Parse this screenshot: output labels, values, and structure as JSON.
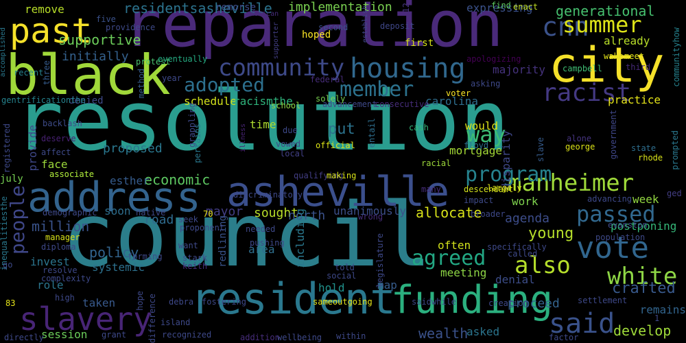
{
  "words": [
    {
      "text": "resolution",
      "color": "#2a9d8f"
    },
    {
      "text": "council",
      "color": "#2b7e8b"
    },
    {
      "text": "reparation",
      "color": "#4a2a7a"
    },
    {
      "text": "black",
      "color": "#a0d83a"
    },
    {
      "text": "city",
      "color": "#f5e12a"
    },
    {
      "text": "past",
      "color": "#f5e12a"
    },
    {
      "text": "asheville",
      "color": "#3b4f8c"
    },
    {
      "text": "address",
      "color": "#33638d"
    },
    {
      "text": "resident",
      "color": "#2a788e"
    },
    {
      "text": "funding",
      "color": "#2bb07f"
    },
    {
      "text": "slavery",
      "color": "#482576"
    },
    {
      "text": "said",
      "color": "#3a528b"
    },
    {
      "text": "vote",
      "color": "#31668e"
    },
    {
      "text": "white",
      "color": "#8ed645"
    },
    {
      "text": "housing",
      "color": "#31688e"
    },
    {
      "text": "community",
      "color": "#3e4a89"
    },
    {
      "text": "cnn",
      "color": "#3b528b"
    },
    {
      "text": "summer",
      "color": "#dde318"
    },
    {
      "text": "racist",
      "color": "#443983"
    },
    {
      "text": "manheimer",
      "color": "#9fda3a"
    },
    {
      "text": "passed",
      "color": "#31688e"
    },
    {
      "text": "program",
      "color": "#26828e"
    },
    {
      "text": "agreed",
      "color": "#23a884"
    },
    {
      "text": "also",
      "color": "#b5de2b"
    },
    {
      "text": "member",
      "color": "#2c728e"
    },
    {
      "text": "way",
      "color": "#3dbc74"
    },
    {
      "text": "adopted",
      "color": "#2d708e"
    },
    {
      "text": "people",
      "color": "#3f4788"
    },
    {
      "text": "economic",
      "color": "#5ec962"
    },
    {
      "text": "wealth",
      "color": "#3b528b"
    },
    {
      "text": "crafted",
      "color": "#38598c"
    },
    {
      "text": "young",
      "color": "#b5de2b"
    },
    {
      "text": "generational",
      "color": "#46c06f"
    },
    {
      "text": "implementation",
      "color": "#7ad151"
    },
    {
      "text": "residentsasheville",
      "color": "#2c738e"
    },
    {
      "text": "supportive",
      "color": "#6ccd5a"
    },
    {
      "text": "initially",
      "color": "#34618d"
    },
    {
      "text": "remove",
      "color": "#b8de29"
    },
    {
      "text": "expressing",
      "color": "#3b528b"
    },
    {
      "text": "remorse",
      "color": "#3e4c8a"
    },
    {
      "text": "already",
      "color": "#b8de29"
    },
    {
      "text": "majority",
      "color": "#46337e"
    },
    {
      "text": "practice",
      "color": "#e5e419"
    },
    {
      "text": "carolina",
      "color": "#2e6e8e"
    },
    {
      "text": "schedule",
      "color": "#d2e21b"
    },
    {
      "text": "racismthe",
      "color": "#2fb47c"
    },
    {
      "text": "denied",
      "color": "#3e4a89"
    },
    {
      "text": "time",
      "color": "#b0dd2f"
    },
    {
      "text": "put",
      "color": "#2c738e"
    },
    {
      "text": "would",
      "color": "#dde318"
    },
    {
      "text": "mortgage",
      "color": "#a5db36"
    },
    {
      "text": "disparity",
      "color": "#3f4889"
    },
    {
      "text": "proposed",
      "color": "#2a778e"
    },
    {
      "text": "provide",
      "color": "#3f4889"
    },
    {
      "text": "face",
      "color": "#9dd93b"
    },
    {
      "text": "esther",
      "color": "#365c8d"
    },
    {
      "text": "july",
      "color": "#77d153"
    },
    {
      "text": "policy",
      "color": "#32648e"
    },
    {
      "text": "million",
      "color": "#3a538b"
    },
    {
      "text": "invest",
      "color": "#2b758e"
    },
    {
      "text": "systemic",
      "color": "#2d718e"
    },
    {
      "text": "role",
      "color": "#2b758e"
    },
    {
      "text": "taken",
      "color": "#38598c"
    },
    {
      "text": "session",
      "color": "#6ccd5a"
    },
    {
      "text": "mayor",
      "color": "#433e85"
    },
    {
      "text": "soon",
      "color": "#2e6e8e"
    },
    {
      "text": "road",
      "color": "#2f6b8e"
    },
    {
      "text": "sought",
      "color": "#b8de29"
    },
    {
      "text": "north",
      "color": "#3b528b"
    },
    {
      "text": "unanimously",
      "color": "#3c4f8a"
    },
    {
      "text": "allocate",
      "color": "#d8e219"
    },
    {
      "text": "agenda",
      "color": "#3d4d8a"
    },
    {
      "text": "work",
      "color": "#7fd34e"
    },
    {
      "text": "week",
      "color": "#93d741"
    },
    {
      "text": "postponing",
      "color": "#35b779"
    },
    {
      "text": "often",
      "color": "#d2e21b"
    },
    {
      "text": "area",
      "color": "#2e6f8e"
    },
    {
      "text": "meeting",
      "color": "#8ed645"
    },
    {
      "text": "denial",
      "color": "#3d4e8a"
    },
    {
      "text": "hold",
      "color": "#20928c"
    },
    {
      "text": "map",
      "color": "#365c8d"
    },
    {
      "text": "proceed",
      "color": "#33638d"
    },
    {
      "text": "remains",
      "color": "#32658e"
    },
    {
      "text": "develop",
      "color": "#9fda3a"
    },
    {
      "text": "asked",
      "color": "#2b758e"
    },
    {
      "text": "including",
      "color": "#2a788e"
    },
    {
      "text": "redlining",
      "color": "#3a548c"
    },
    {
      "text": "gentrificationthe",
      "color": "#25838e"
    },
    {
      "text": "enact",
      "color": "#c2df23"
    },
    {
      "text": "five",
      "color": "#3b528b"
    },
    {
      "text": "providence",
      "color": "#3e4a89"
    },
    {
      "text": "american",
      "color": "#472c7a"
    },
    {
      "text": "establish",
      "color": "#3f4788"
    },
    {
      "text": "find",
      "color": "#5ec962"
    },
    {
      "text": "second",
      "color": "#3b528b"
    },
    {
      "text": "deposit",
      "color": "#3f4788"
    },
    {
      "text": "hoped",
      "color": "#fde725"
    },
    {
      "text": "first",
      "color": "#d8e219"
    },
    {
      "text": "supporter",
      "color": "#433e85"
    },
    {
      "text": "12",
      "color": "#46337e"
    },
    {
      "text": "wake",
      "color": "#e5e419"
    },
    {
      "text": "meet",
      "color": "#e5e419"
    },
    {
      "text": "third",
      "color": "#472a7a"
    },
    {
      "text": "campbell",
      "color": "#3fbc73"
    },
    {
      "text": "apologizing",
      "color": "#440154"
    },
    {
      "text": "communityhow",
      "color": "#26828e"
    },
    {
      "text": "protest",
      "color": "#4ac16d"
    },
    {
      "text": "eventually",
      "color": "#25ab82"
    },
    {
      "text": "year",
      "color": "#3e4989"
    },
    {
      "text": "method",
      "color": "#365c8d"
    },
    {
      "text": "accomplished",
      "color": "#2a788e"
    },
    {
      "text": "recent",
      "color": "#26828e"
    },
    {
      "text": "three",
      "color": "#365c8d"
    },
    {
      "text": "federal",
      "color": "#472d7b"
    },
    {
      "text": "asking",
      "color": "#3e4989"
    },
    {
      "text": "voter",
      "color": "#fde725"
    },
    {
      "text": "school",
      "color": "#8ed645"
    },
    {
      "text": "solely",
      "color": "#7ad151"
    },
    {
      "text": "advancement",
      "color": "#3e4989"
    },
    {
      "text": "consecutive",
      "color": "#472d7b"
    },
    {
      "text": "grappling",
      "color": "#3e4989"
    },
    {
      "text": "backlash",
      "color": "#3e4c8a"
    },
    {
      "text": "deserve",
      "color": "#482173"
    },
    {
      "text": "affect",
      "color": "#3e4a89"
    },
    {
      "text": "associate",
      "color": "#a2da37"
    },
    {
      "text": "registered",
      "color": "#3e4989"
    },
    {
      "text": "pertains",
      "color": "#2a788e"
    },
    {
      "text": "illness",
      "color": "#482475"
    },
    {
      "text": "vowed",
      "color": "#3e4989"
    },
    {
      "text": "local",
      "color": "#424086"
    },
    {
      "text": "official",
      "color": "#dde318"
    },
    {
      "text": "entail",
      "color": "#2e6e8e"
    },
    {
      "text": "due",
      "color": "#3e4989"
    },
    {
      "text": "cash",
      "color": "#35b779"
    },
    {
      "text": "floyd",
      "color": "#2d718e"
    },
    {
      "text": "slave",
      "color": "#365c8d"
    },
    {
      "text": "alone",
      "color": "#463480"
    },
    {
      "text": "george",
      "color": "#dde318"
    },
    {
      "text": "government",
      "color": "#3f4788"
    },
    {
      "text": "state",
      "color": "#2e6e8e"
    },
    {
      "text": "rhode",
      "color": "#d8e219"
    },
    {
      "text": "prompted",
      "color": "#2a788e"
    },
    {
      "text": "racial",
      "color": "#9dd93b"
    },
    {
      "text": "many",
      "color": "#472d7b"
    },
    {
      "text": "descendant",
      "color": "#d2e21b"
    },
    {
      "text": "largely",
      "color": "#dde318"
    },
    {
      "text": "impact",
      "color": "#3e4a89"
    },
    {
      "text": "advancing",
      "color": "#3e4989"
    },
    {
      "text": "ged",
      "color": "#433e85"
    },
    {
      "text": "broader",
      "color": "#3e4989"
    },
    {
      "text": "evanston",
      "color": "#3e4989"
    },
    {
      "text": "population",
      "color": "#3e4a89"
    },
    {
      "text": "specifically",
      "color": "#3e4989"
    },
    {
      "text": "called",
      "color": "#3e4989"
    },
    {
      "text": "discriminatory",
      "color": "#3e4989"
    },
    {
      "text": "qualifying",
      "color": "#433e85"
    },
    {
      "text": "making",
      "color": "#d8e219"
    },
    {
      "text": "associate2",
      "color": "#a2da37"
    },
    {
      "text": "inequalitiesthe",
      "color": "#2a788e"
    },
    {
      "text": "demographic",
      "color": "#3e4989"
    },
    {
      "text": "manager",
      "color": "#d8e219"
    },
    {
      "text": "diploma",
      "color": "#3e4989"
    },
    {
      "text": "go",
      "color": "#3e4989"
    },
    {
      "text": "resolve",
      "color": "#3e4989"
    },
    {
      "text": "complexity",
      "color": "#3e4989"
    },
    {
      "text": "83",
      "color": "#e5e419"
    },
    {
      "text": "high",
      "color": "#3e4989"
    },
    {
      "text": "hope",
      "color": "#3e4989"
    },
    {
      "text": "forming",
      "color": "#3e4989"
    },
    {
      "text": "stark",
      "color": "#3e4989"
    },
    {
      "text": "keith",
      "color": "#472d7b"
    },
    {
      "text": "want",
      "color": "#3e4989"
    },
    {
      "text": "seek",
      "color": "#3e4989"
    },
    {
      "text": "native",
      "color": "#3e4989"
    },
    {
      "text": "proponent",
      "color": "#3e4989"
    },
    {
      "text": "70",
      "color": "#e5e419"
    },
    {
      "text": "needed",
      "color": "#3e4989"
    },
    {
      "text": "pushing",
      "color": "#3e4989"
    },
    {
      "text": "told",
      "color": "#3e4989"
    },
    {
      "text": "social",
      "color": "#3e4989"
    },
    {
      "text": "legislature",
      "color": "#3e4989"
    },
    {
      "text": "wrong",
      "color": "#472d7b"
    },
    {
      "text": "sameoutgoing",
      "color": "#e5e419"
    },
    {
      "text": "saidwhile",
      "color": "#3e4989"
    },
    {
      "text": "creation",
      "color": "#3e4989"
    },
    {
      "text": "settlement",
      "color": "#3e4989"
    },
    {
      "text": "1",
      "color": "#3e4989"
    },
    {
      "text": "fostering",
      "color": "#3e4989"
    },
    {
      "text": "debra",
      "color": "#3e4989"
    },
    {
      "text": "island",
      "color": "#3e4989"
    },
    {
      "text": "difference",
      "color": "#3e4989"
    },
    {
      "text": "recognized",
      "color": "#3e4989"
    },
    {
      "text": "grant",
      "color": "#3e4989"
    },
    {
      "text": "directly",
      "color": "#3e4989"
    },
    {
      "text": "addition",
      "color": "#472d7b"
    },
    {
      "text": "wellbeing",
      "color": "#3e4989"
    },
    {
      "text": "within",
      "color": "#3e4989"
    },
    {
      "text": "factor",
      "color": "#3e4989"
    }
  ]
}
